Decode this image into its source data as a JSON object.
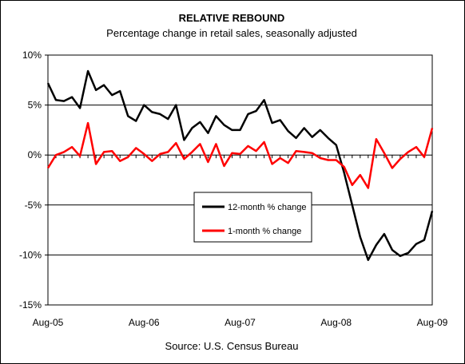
{
  "chart_data": {
    "type": "line",
    "title": "RELATIVE REBOUND",
    "subtitle": "Percentage change in retail sales, seasonally adjusted",
    "source": "Source: U.S. Census Bureau",
    "xlabel": "",
    "ylabel": "",
    "ylim": [
      -15,
      10
    ],
    "y_ticks": [
      10,
      5,
      0,
      -5,
      -10,
      -15
    ],
    "y_tick_labels": [
      "10%",
      "5%",
      "0%",
      "-5%",
      "-10%",
      "-15%"
    ],
    "x_tick_labels": [
      "Aug-05",
      "Aug-06",
      "Aug-07",
      "Aug-08",
      "Aug-09"
    ],
    "x": [
      "Aug-05",
      "Sep-05",
      "Oct-05",
      "Nov-05",
      "Dec-05",
      "Jan-06",
      "Feb-06",
      "Mar-06",
      "Apr-06",
      "May-06",
      "Jun-06",
      "Jul-06",
      "Aug-06",
      "Sep-06",
      "Oct-06",
      "Nov-06",
      "Dec-06",
      "Jan-07",
      "Feb-07",
      "Mar-07",
      "Apr-07",
      "May-07",
      "Jun-07",
      "Jul-07",
      "Aug-07",
      "Sep-07",
      "Oct-07",
      "Nov-07",
      "Dec-07",
      "Jan-08",
      "Feb-08",
      "Mar-08",
      "Apr-08",
      "May-08",
      "Jun-08",
      "Jul-08",
      "Aug-08",
      "Sep-08",
      "Oct-08",
      "Nov-08",
      "Dec-08",
      "Jan-09",
      "Feb-09",
      "Mar-09",
      "Apr-09",
      "May-09",
      "Jun-09",
      "Jul-09",
      "Aug-09"
    ],
    "grid": "horizontal",
    "legend_position": "center-right",
    "series": [
      {
        "name": "12-month % change",
        "color": "#000000",
        "values": [
          7.2,
          5.5,
          5.4,
          5.8,
          4.7,
          8.4,
          6.5,
          7.0,
          6.0,
          6.4,
          3.9,
          3.4,
          5.0,
          4.3,
          4.1,
          3.6,
          5.0,
          1.5,
          2.7,
          3.3,
          2.2,
          3.9,
          3.0,
          2.5,
          2.5,
          4.1,
          4.4,
          5.5,
          3.2,
          3.5,
          2.4,
          1.7,
          2.7,
          1.8,
          2.5,
          1.7,
          1.0,
          -1.8,
          -5.0,
          -8.2,
          -10.5,
          -9.0,
          -7.9,
          -9.5,
          -10.1,
          -9.8,
          -8.9,
          -8.5,
          -5.6
        ]
      },
      {
        "name": "1-month % change",
        "color": "#ff0000",
        "values": [
          -1.3,
          0.0,
          0.3,
          0.8,
          -0.1,
          3.2,
          -0.9,
          0.3,
          0.4,
          -0.6,
          -0.2,
          0.7,
          0.1,
          -0.6,
          0.1,
          0.3,
          1.2,
          -0.4,
          0.3,
          1.1,
          -0.7,
          1.1,
          -1.1,
          0.2,
          0.1,
          0.9,
          0.4,
          1.3,
          -0.9,
          -0.3,
          -0.8,
          0.4,
          0.3,
          0.2,
          -0.3,
          -0.5,
          -0.5,
          -1.2,
          -3.0,
          -2.0,
          -3.3,
          1.6,
          0.2,
          -1.3,
          -0.4,
          0.3,
          0.8,
          -0.2,
          2.7
        ]
      }
    ]
  }
}
